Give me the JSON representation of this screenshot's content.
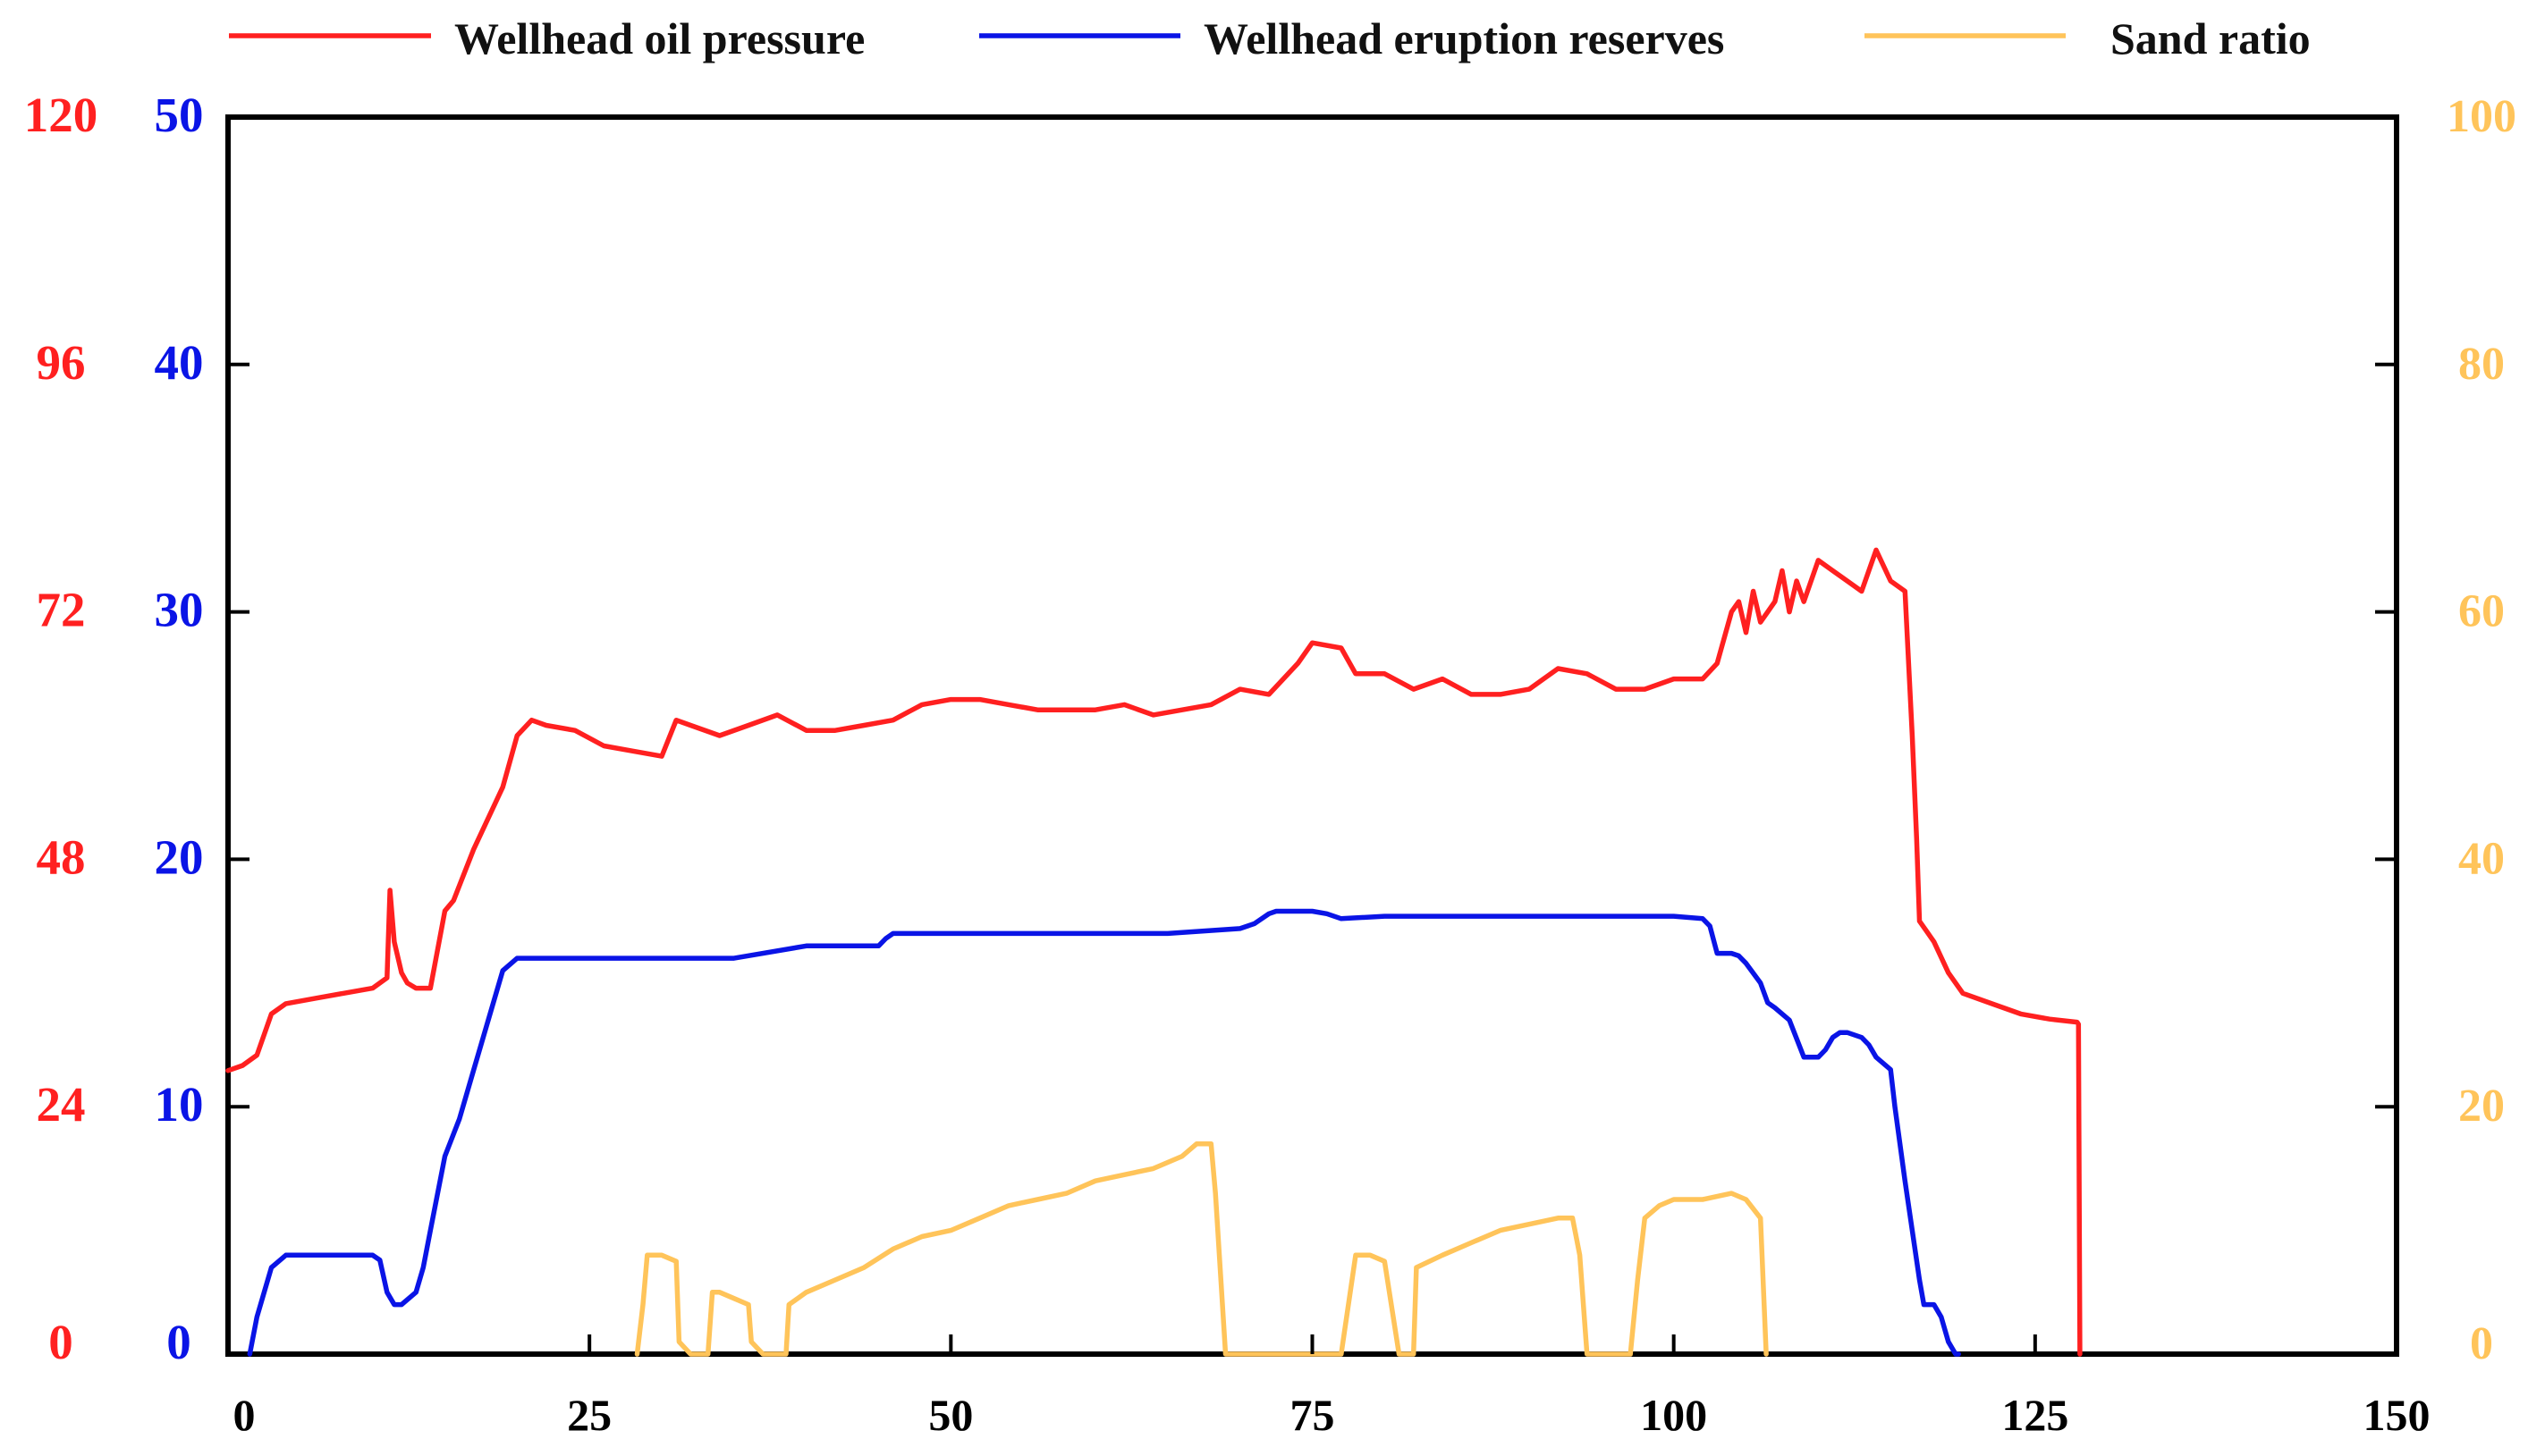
{
  "chart_data": {
    "type": "line",
    "legend": {
      "placement": "top",
      "entries": [
        "Wellhead oil pressure",
        "Wellhead eruption reserves",
        "Sand ratio"
      ]
    },
    "grid": false,
    "x_axis": {
      "range": [
        0,
        150
      ],
      "ticks": [
        0,
        25,
        50,
        75,
        100,
        125,
        150
      ],
      "tick_labels": [
        "0",
        "25",
        "50",
        "75",
        "100",
        "125",
        "150"
      ]
    },
    "y_axes": [
      {
        "id": "pressure",
        "side": "left-outer",
        "color": "#ff2020",
        "range": [
          0,
          120
        ],
        "ticks": [
          0,
          24,
          48,
          72,
          96,
          120
        ],
        "tick_labels": [
          "0",
          "24",
          "48",
          "72",
          "96",
          "120"
        ]
      },
      {
        "id": "reserves",
        "side": "left-inner",
        "color": "#0a14e6",
        "range": [
          0,
          50
        ],
        "ticks": [
          0,
          10,
          20,
          30,
          40,
          50
        ],
        "tick_labels": [
          "0",
          "10",
          "20",
          "30",
          "40",
          "50"
        ]
      },
      {
        "id": "sand",
        "side": "right",
        "color": "#ffc45a",
        "range": [
          0,
          100
        ],
        "ticks": [
          0,
          20,
          40,
          60,
          80,
          100
        ],
        "tick_labels": [
          "0",
          "20",
          "40",
          "60",
          "80",
          "100"
        ]
      }
    ],
    "series": [
      {
        "name": "Wellhead oil pressure",
        "axis": "pressure",
        "color": "#ff2020",
        "x": [
          0,
          1,
          2,
          2.5,
          3,
          4,
          6,
          8,
          10,
          11,
          11.2,
          11.5,
          12,
          12.4,
          13,
          14,
          15,
          15.6,
          17,
          19,
          20,
          21,
          22,
          24,
          26,
          28,
          30,
          31,
          32,
          34,
          36,
          38,
          40,
          42,
          44,
          46,
          48,
          50,
          52,
          54,
          56,
          58,
          60,
          62,
          64,
          66,
          68,
          70,
          72,
          74,
          75,
          77,
          78,
          80,
          82,
          84,
          86,
          88,
          90,
          92,
          94,
          96,
          98,
          100,
          102,
          103,
          104,
          104.5,
          105,
          105.5,
          106,
          106.5,
          107,
          107.5,
          108,
          108.5,
          109,
          110,
          111,
          112,
          113,
          114,
          115,
          116,
          116.5,
          116.8,
          117,
          117.5,
          118,
          119,
          120,
          122,
          124,
          126,
          127.9,
          128,
          128.1
        ],
        "values": [
          27.5,
          28,
          29,
          31,
          33,
          34,
          34.5,
          35,
          35.5,
          36.5,
          45,
          40,
          37,
          36,
          35.5,
          35.5,
          43,
          44,
          49,
          55,
          60,
          61.5,
          61,
          60.5,
          59,
          58.5,
          58,
          61.5,
          61,
          60,
          61,
          62,
          60.5,
          60.5,
          61,
          61.5,
          63,
          63.5,
          63.5,
          63,
          62.5,
          62.5,
          62.5,
          63,
          62,
          62.5,
          63,
          64.5,
          64,
          67,
          69,
          68.5,
          66,
          66,
          64.5,
          65.5,
          64,
          64,
          64.5,
          66.5,
          66,
          64.5,
          64.5,
          65.5,
          65.5,
          67,
          72,
          73,
          70,
          74,
          71,
          72,
          73,
          76,
          72,
          75,
          73,
          77,
          76,
          75,
          74,
          78,
          75,
          74,
          60,
          50,
          42,
          41,
          40,
          37,
          35,
          34,
          33,
          32.5,
          32.2,
          32,
          0
        ]
      },
      {
        "name": "Wellhead eruption reserves",
        "axis": "reserves",
        "color": "#0a14e6",
        "x": [
          1.5,
          2,
          2.5,
          3,
          4,
          6,
          8,
          10,
          10.5,
          11,
          11.5,
          12,
          13,
          13.5,
          14,
          15,
          16,
          17,
          18,
          19,
          20,
          21,
          25,
          30,
          35,
          40,
          45,
          45.5,
          46,
          50,
          55,
          60,
          65,
          70,
          71,
          72,
          72.5,
          73,
          75,
          76,
          77,
          80,
          85,
          90,
          95,
          100,
          102,
          102.5,
          103,
          104,
          104.5,
          105,
          106,
          106.5,
          107,
          108,
          109,
          110,
          110.5,
          111,
          111.5,
          112,
          113,
          113.5,
          114,
          115,
          115.3,
          116,
          116.5,
          117,
          117.3,
          118,
          118.5,
          119,
          119.5,
          119.7
        ],
        "values": [
          0,
          1.5,
          2.5,
          3.5,
          4,
          4,
          4,
          4,
          3.8,
          2.5,
          2,
          2,
          2.5,
          3.5,
          5,
          8,
          9.5,
          11.5,
          13.5,
          15.5,
          16,
          16,
          16,
          16,
          16,
          16.5,
          16.5,
          16.8,
          17,
          17,
          17,
          17,
          17,
          17.2,
          17.4,
          17.8,
          17.9,
          17.9,
          17.9,
          17.8,
          17.6,
          17.7,
          17.7,
          17.7,
          17.7,
          17.7,
          17.6,
          17.3,
          16.2,
          16.2,
          16.1,
          15.8,
          15,
          14.2,
          14,
          13.5,
          12,
          12,
          12.3,
          12.8,
          13,
          13,
          12.8,
          12.5,
          12,
          11.5,
          10,
          7,
          5,
          3,
          2,
          2,
          1.5,
          0.5,
          0,
          0
        ]
      },
      {
        "name": "Sand ratio",
        "axis": "sand",
        "color": "#ffc45a",
        "x": [
          28.3,
          28.7,
          29,
          30,
          31,
          31.2,
          32,
          33.2,
          33.5,
          34,
          35,
          36,
          36.2,
          37,
          38.6,
          38.8,
          40,
          42,
          44,
          46,
          48,
          50,
          52,
          54,
          56,
          58,
          60,
          62,
          64,
          66,
          67,
          68,
          68.3,
          69,
          75,
          77,
          78,
          79,
          80,
          81,
          82,
          82.2,
          84,
          86,
          88,
          90,
          92,
          93,
          93.5,
          94,
          97,
          97.5,
          98,
          99,
          100,
          102,
          104,
          105,
          106,
          106.4
        ],
        "values": [
          0,
          4,
          8,
          8,
          7.5,
          1,
          0,
          0,
          5,
          5,
          4.5,
          4,
          1,
          0,
          0,
          4,
          5,
          6,
          7,
          8.5,
          9.5,
          10,
          11,
          12,
          12.5,
          13,
          14,
          14.5,
          15,
          16,
          17,
          17,
          13,
          0,
          0,
          0,
          8,
          8,
          7.5,
          0,
          0,
          7,
          8,
          9,
          10,
          10.5,
          11,
          11,
          8,
          0,
          0,
          6,
          11,
          12,
          12.5,
          12.5,
          13,
          12.5,
          11,
          0
        ]
      }
    ]
  }
}
